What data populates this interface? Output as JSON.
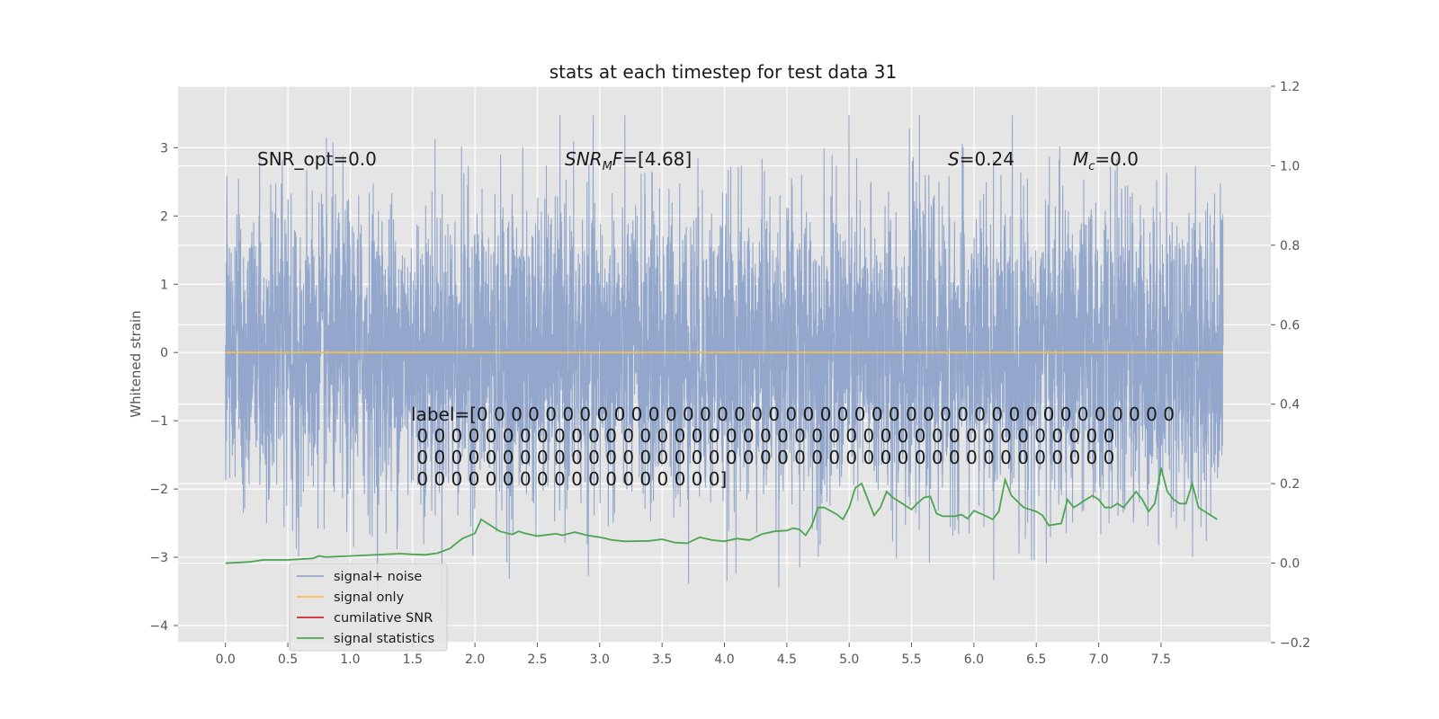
{
  "chart_data": {
    "type": "line",
    "title": "stats at each timestep for test data 31",
    "ylabel": "Whitened strain",
    "xlim": [
      -0.38,
      8.38
    ],
    "ylim": [
      -4.25,
      3.9
    ],
    "y2lim": [
      -0.2,
      1.2
    ],
    "grid": true,
    "legend_position": "lower-left",
    "x_ticks": [
      "0.0",
      "0.5",
      "1.0",
      "1.5",
      "2.0",
      "2.5",
      "3.0",
      "3.5",
      "4.0",
      "4.5",
      "5.0",
      "5.5",
      "6.0",
      "6.5",
      "7.0",
      "7.5"
    ],
    "y_ticks": [
      "3",
      "2",
      "1",
      "0",
      "−1",
      "−2",
      "−3",
      "−4"
    ],
    "y2_ticks": [
      "1.2",
      "1.0",
      "0.8",
      "0.6",
      "0.4",
      "0.2",
      "0.0",
      "−0.2"
    ],
    "annotations": {
      "snr_opt": "SNR_opt=0.0",
      "snr_mf": "SNR_MF=[4.68]",
      "s": "S=0.24",
      "mc": "M_c=0.0"
    },
    "label_lines": [
      "label=[0 0 0 0 0 0 0 0 0 0 0 0 0 0 0 0 0 0 0 0 0 0 0 0 0 0 0 0 0 0 0 0 0 0 0 0 0 0 0 0 0",
      " 0 0 0 0 0 0 0 0 0 0 0 0 0 0 0 0 0 0 0 0 0 0 0 0 0 0 0 0 0 0 0 0 0 0 0 0 0 0 0 0 0",
      " 0 0 0 0 0 0 0 0 0 0 0 0 0 0 0 0 0 0 0 0 0 0 0 0 0 0 0 0 0 0 0 0 0 0 0 0 0 0 0 0 0",
      " 0 0 0 0 0 0 0 0 0 0 0 0 0 0 0 0 0 0]"
    ],
    "series": [
      {
        "name": "signal+ noise",
        "color": "#92a7cb",
        "noise_amplitude": 1.1,
        "max": 3.47,
        "min": -3.98
      },
      {
        "name": "signal only",
        "color": "#f2be55",
        "x": [
          0.0,
          8.0
        ],
        "y": [
          0.0,
          0.0
        ]
      },
      {
        "name": "cumilative SNR",
        "color": "#d62728",
        "x": [],
        "y": []
      },
      {
        "name": "signal statistics",
        "color": "#4ca551",
        "axis": "right",
        "x": [
          0.0,
          0.2,
          0.3,
          0.5,
          0.7,
          0.75,
          0.8,
          1.0,
          1.4,
          1.5,
          1.6,
          1.7,
          1.8,
          1.85,
          1.9,
          2.0,
          2.05,
          2.1,
          2.2,
          2.3,
          2.35,
          2.4,
          2.5,
          2.6,
          2.65,
          2.7,
          2.8,
          2.9,
          3.0,
          3.05,
          3.1,
          3.2,
          3.4,
          3.5,
          3.6,
          3.7,
          3.8,
          3.9,
          4.0,
          4.1,
          4.2,
          4.3,
          4.4,
          4.5,
          4.55,
          4.6,
          4.65,
          4.7,
          4.75,
          4.8,
          4.9,
          4.95,
          5.0,
          5.05,
          5.1,
          5.15,
          5.2,
          5.25,
          5.3,
          5.35,
          5.4,
          5.5,
          5.55,
          5.6,
          5.65,
          5.7,
          5.75,
          5.85,
          5.9,
          5.95,
          6.0,
          6.1,
          6.15,
          6.2,
          6.25,
          6.3,
          6.4,
          6.5,
          6.55,
          6.6,
          6.7,
          6.75,
          6.8,
          6.85,
          6.9,
          6.95,
          7.0,
          7.05,
          7.1,
          7.15,
          7.2,
          7.3,
          7.35,
          7.4,
          7.45,
          7.5,
          7.55,
          7.6,
          7.65,
          7.7,
          7.75,
          7.8,
          7.9,
          7.95
        ],
        "y": [
          0.0,
          0.003,
          0.008,
          0.008,
          0.012,
          0.018,
          0.015,
          0.018,
          0.024,
          0.022,
          0.021,
          0.025,
          0.037,
          0.05,
          0.062,
          0.075,
          0.11,
          0.1,
          0.08,
          0.072,
          0.08,
          0.075,
          0.068,
          0.072,
          0.074,
          0.07,
          0.078,
          0.07,
          0.065,
          0.062,
          0.058,
          0.055,
          0.056,
          0.06,
          0.052,
          0.05,
          0.065,
          0.058,
          0.055,
          0.062,
          0.058,
          0.073,
          0.08,
          0.082,
          0.088,
          0.085,
          0.07,
          0.095,
          0.14,
          0.14,
          0.123,
          0.11,
          0.14,
          0.19,
          0.2,
          0.16,
          0.12,
          0.14,
          0.18,
          0.165,
          0.155,
          0.135,
          0.152,
          0.165,
          0.168,
          0.125,
          0.118,
          0.118,
          0.122,
          0.112,
          0.132,
          0.118,
          0.11,
          0.13,
          0.21,
          0.17,
          0.14,
          0.13,
          0.12,
          0.095,
          0.1,
          0.16,
          0.14,
          0.15,
          0.16,
          0.17,
          0.16,
          0.14,
          0.14,
          0.15,
          0.14,
          0.18,
          0.16,
          0.13,
          0.15,
          0.24,
          0.18,
          0.16,
          0.15,
          0.15,
          0.2,
          0.14,
          0.12,
          0.11
        ]
      }
    ]
  }
}
